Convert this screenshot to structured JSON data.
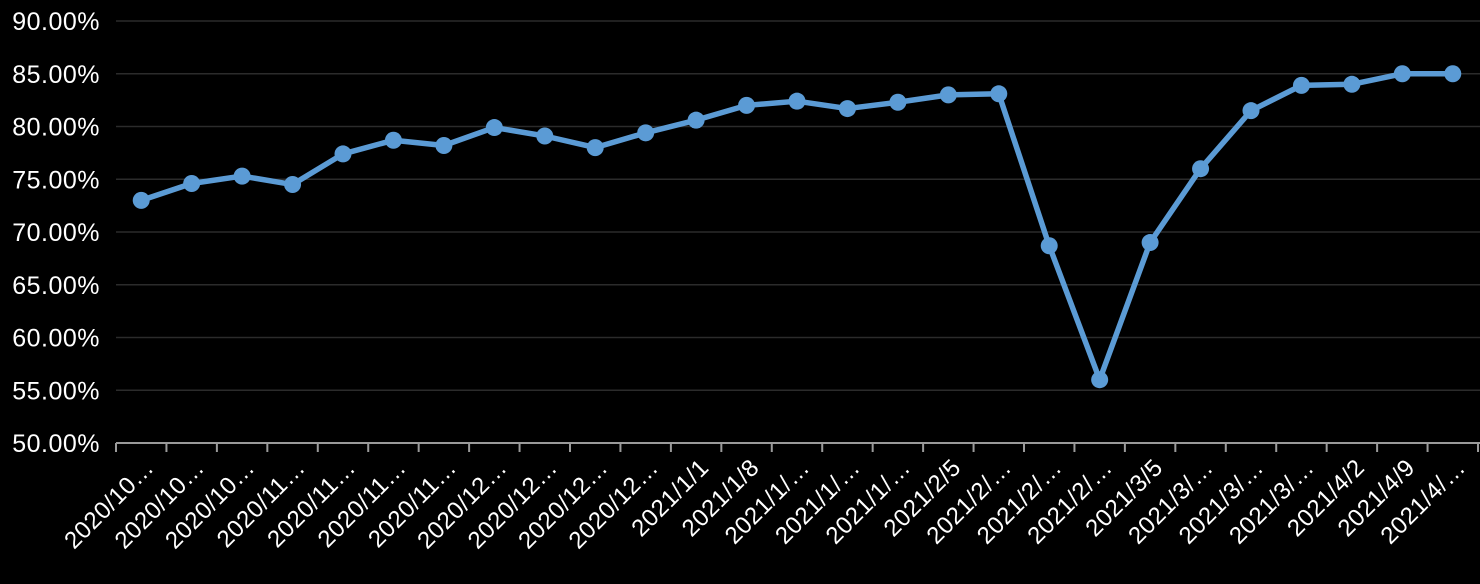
{
  "chart_data": {
    "type": "line",
    "title": "",
    "xlabel": "",
    "ylabel": "",
    "categories": [
      "2020/10…",
      "2020/10…",
      "2020/10…",
      "2020/11…",
      "2020/11…",
      "2020/11…",
      "2020/11…",
      "2020/12…",
      "2020/12…",
      "2020/12…",
      "2020/12…",
      "2021/1/1",
      "2021/1/8",
      "2021/1/…",
      "2021/1/…",
      "2021/1/…",
      "2021/2/5",
      "2021/2/…",
      "2021/2/…",
      "2021/2/…",
      "2021/3/5",
      "2021/3/…",
      "2021/3/…",
      "2021/3/…",
      "2021/4/2",
      "2021/4/9",
      "2021/4/…"
    ],
    "series": [
      {
        "name": "",
        "values": [
          73.0,
          74.6,
          75.3,
          74.5,
          77.4,
          78.7,
          78.2,
          79.9,
          79.1,
          78.0,
          79.4,
          80.6,
          82.0,
          82.4,
          81.7,
          82.3,
          83.0,
          83.1,
          68.7,
          56.0,
          69.0,
          76.0,
          81.5,
          83.9,
          84.0,
          85.0,
          85.0
        ]
      }
    ],
    "ylim": [
      50,
      90
    ],
    "y_tick_values": [
      50,
      55,
      60,
      65,
      70,
      75,
      80,
      85,
      90
    ],
    "y_ticks": [
      "50.00%",
      "55.00%",
      "60.00%",
      "65.00%",
      "70.00%",
      "75.00%",
      "80.00%",
      "85.00%",
      "90.00%"
    ],
    "grid": "horizontal",
    "legend_position": "none",
    "marker": "circle",
    "x_label_rotation_deg": 45
  },
  "colors": {
    "background": "#000000",
    "series_line": "#5B9BD5",
    "marker_fill": "#5B9BD5",
    "gridline": "#2B2B2B",
    "axis_line": "#9A9A9A",
    "tick_text": "#FFFFFF"
  }
}
